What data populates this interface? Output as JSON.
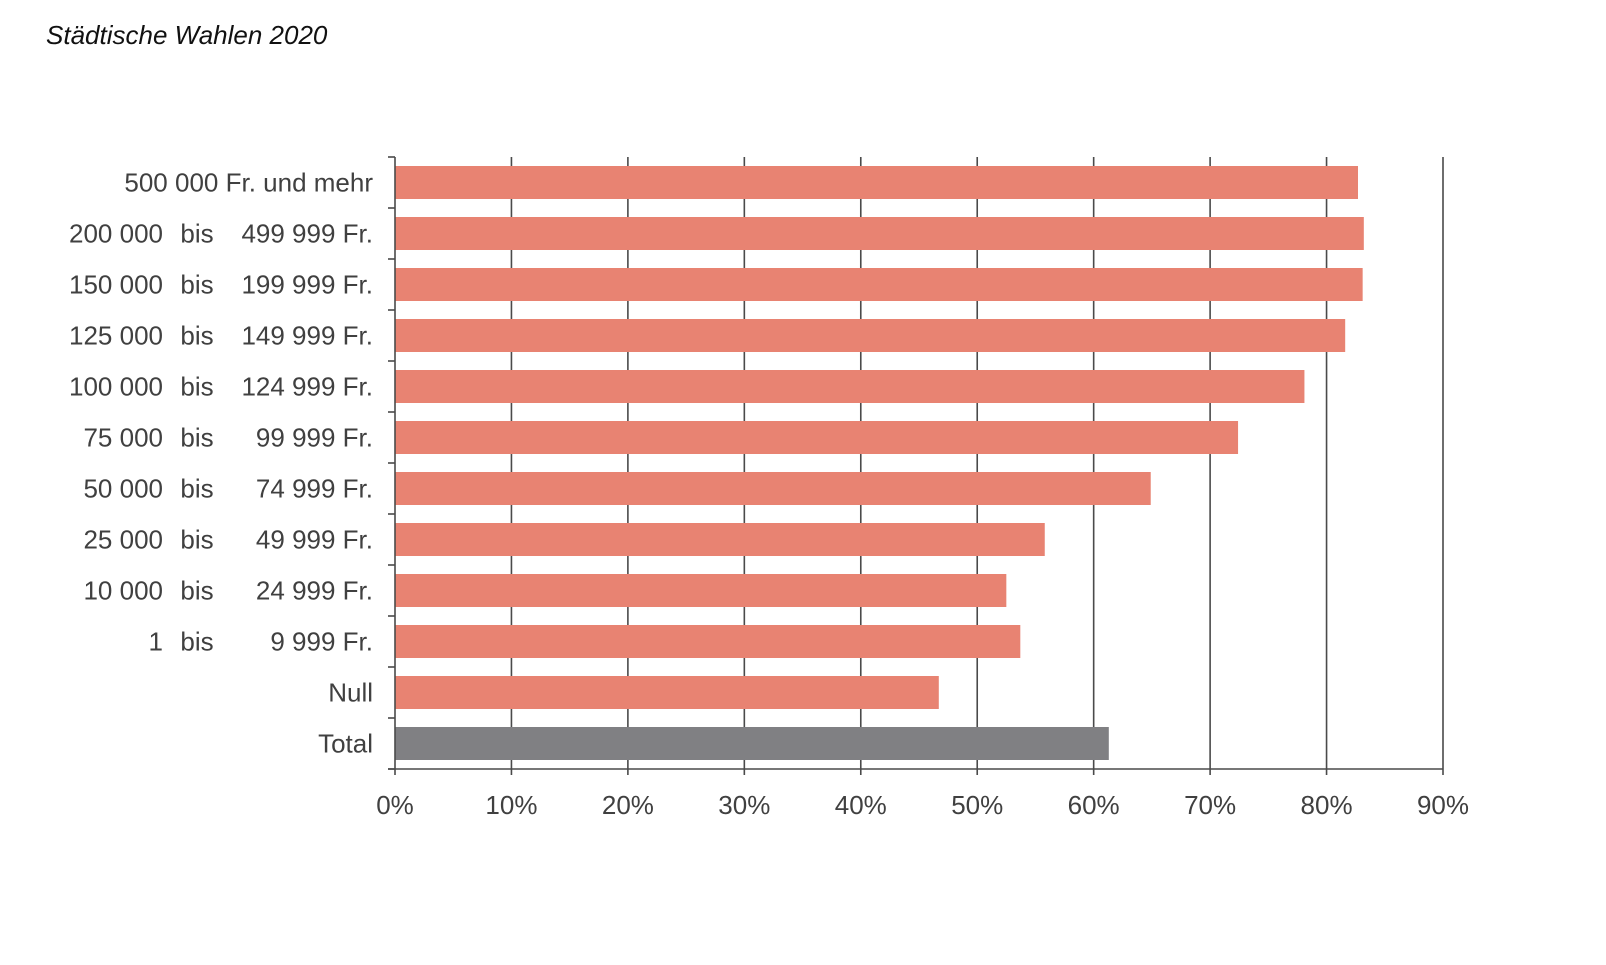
{
  "page": {
    "title": "Städtische Wahlen 2020"
  },
  "chart_data": {
    "type": "bar",
    "orientation": "horizontal",
    "title": "Städtische Wahlen 2020",
    "xlabel": "",
    "ylabel": "",
    "xlim": [
      0,
      90
    ],
    "x_ticks": [
      "0%",
      "10%",
      "20%",
      "30%",
      "40%",
      "50%",
      "60%",
      "70%",
      "80%",
      "90%"
    ],
    "grid": "vertical",
    "legend": "none",
    "colors": {
      "bar": "#E88372",
      "total": "#808083",
      "axis": "#555555"
    },
    "categories": [
      {
        "parts": [
          "500 000 Fr. und mehr"
        ]
      },
      {
        "parts": [
          "200 000",
          "bis",
          "499 999 Fr."
        ]
      },
      {
        "parts": [
          "150 000",
          "bis",
          "199 999 Fr."
        ]
      },
      {
        "parts": [
          "125 000",
          "bis",
          "149 999 Fr."
        ]
      },
      {
        "parts": [
          "100 000",
          "bis",
          "124 999 Fr."
        ]
      },
      {
        "parts": [
          "75 000",
          "bis",
          "99 999 Fr."
        ]
      },
      {
        "parts": [
          "50 000",
          "bis",
          "74 999 Fr."
        ]
      },
      {
        "parts": [
          "25 000",
          "bis",
          "49 999 Fr."
        ]
      },
      {
        "parts": [
          "10 000",
          "bis",
          "24 999 Fr."
        ]
      },
      {
        "parts": [
          "1",
          "bis",
          "9 999 Fr."
        ]
      },
      {
        "parts": [
          "Null"
        ]
      },
      {
        "parts": [
          "Total"
        ]
      }
    ],
    "values": [
      82.7,
      83.2,
      83.1,
      81.6,
      78.1,
      72.4,
      64.9,
      55.8,
      52.5,
      53.7,
      46.7,
      61.3
    ],
    "highlight": "Total"
  }
}
